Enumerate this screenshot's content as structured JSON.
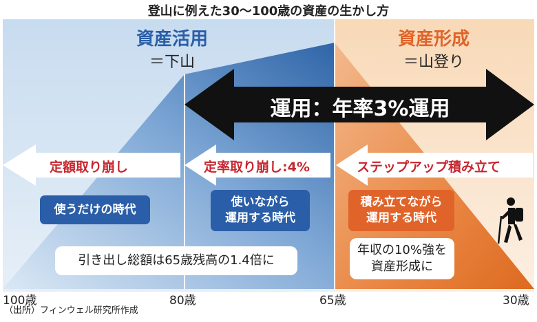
{
  "title": "登山に例えた30〜100歳の資産の生かし方",
  "left_section": {
    "title": "資産活用",
    "subtitle": "＝下山"
  },
  "right_section": {
    "title": "資産形成",
    "subtitle": "＝山登り"
  },
  "big_arrow": {
    "label": "運用：年率3%運用"
  },
  "stage_arrows": [
    {
      "label": "定額取り崩し"
    },
    {
      "label": "定率取り崩し:4%"
    },
    {
      "label": "ステップアップ積み立て"
    }
  ],
  "era_boxes": [
    {
      "text": "使うだけの時代",
      "color": "#2a5ea8"
    },
    {
      "text": "使いながら\n運用する時代",
      "color": "#2a5ea8"
    },
    {
      "text": "積み立てながら\n運用する時代",
      "color": "#e0642a"
    }
  ],
  "notes": [
    {
      "text": "引き出し総額は65歳残高の1.4倍に"
    },
    {
      "text": "年収の10%強を\n資産形成に"
    }
  ],
  "ages": [
    "100歳",
    "80歳",
    "65歳",
    "30歳"
  ],
  "source": "（出所）フィンウェル研究所作成",
  "colors": {
    "blue_title": "#2a5ea8",
    "orange_title": "#e0642a",
    "arrow_text": "#c8262f"
  },
  "icons": {
    "hiker": "hiker-icon"
  }
}
